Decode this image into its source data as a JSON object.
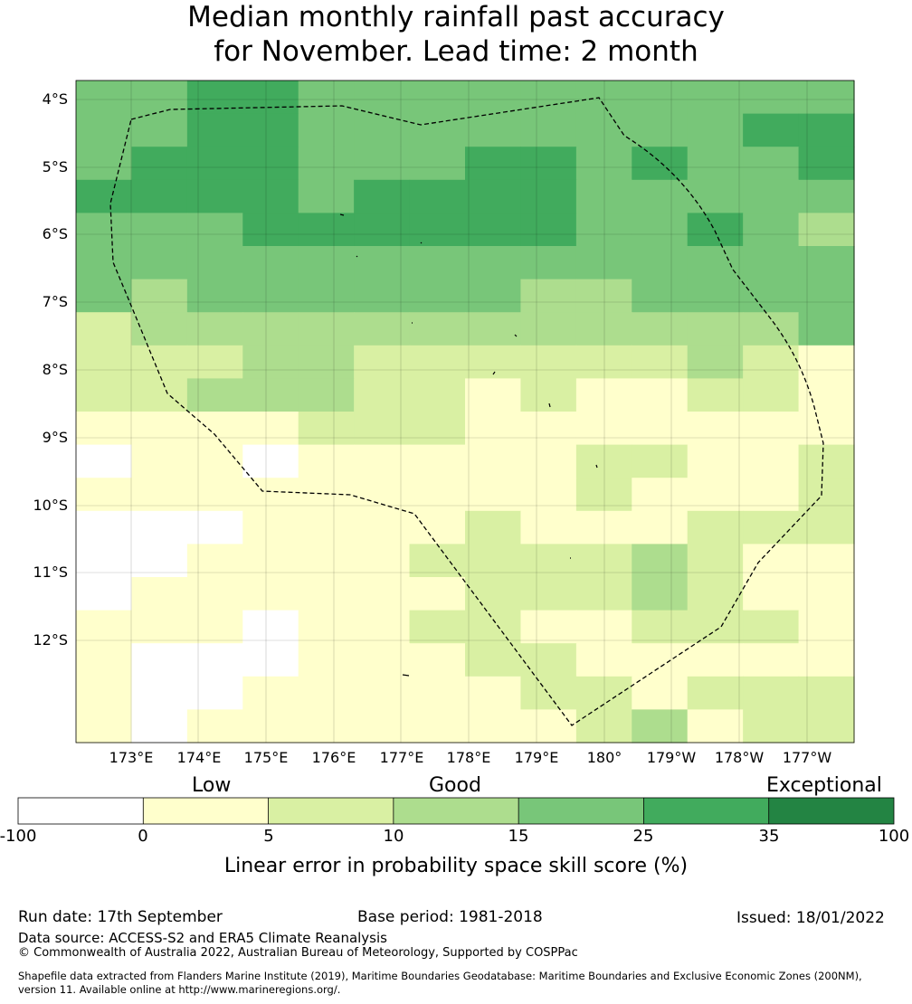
{
  "title": {
    "line1": "Median monthly rainfall past accuracy",
    "line2": "for November. Lead time: 2 month"
  },
  "map": {
    "lat_labels": [
      "4°S",
      "5°S",
      "6°S",
      "7°S",
      "8°S",
      "9°S",
      "10°S",
      "11°S",
      "12°S"
    ],
    "lon_labels": [
      "173°E",
      "174°E",
      "175°E",
      "176°E",
      "177°E",
      "178°E",
      "179°E",
      "180°",
      "179°W",
      "178°W",
      "177°W"
    ],
    "boundary_style": "dashed",
    "grid": [
      [
        4,
        4,
        5,
        5,
        4,
        4,
        4,
        4,
        4,
        4,
        4,
        4,
        4,
        4
      ],
      [
        4,
        4,
        5,
        5,
        4,
        4,
        4,
        4,
        4,
        4,
        4,
        4,
        5,
        5
      ],
      [
        4,
        5,
        5,
        5,
        4,
        4,
        4,
        5,
        5,
        4,
        5,
        4,
        4,
        5
      ],
      [
        5,
        5,
        5,
        5,
        4,
        5,
        5,
        5,
        5,
        4,
        4,
        4,
        4,
        4
      ],
      [
        4,
        4,
        4,
        5,
        5,
        5,
        5,
        5,
        5,
        4,
        4,
        5,
        4,
        3
      ],
      [
        4,
        4,
        4,
        4,
        4,
        4,
        4,
        4,
        4,
        4,
        4,
        4,
        4,
        4
      ],
      [
        4,
        3,
        4,
        4,
        4,
        4,
        4,
        4,
        3,
        3,
        4,
        4,
        4,
        4
      ],
      [
        2,
        3,
        3,
        3,
        3,
        3,
        3,
        3,
        3,
        3,
        3,
        3,
        3,
        4
      ],
      [
        2,
        2,
        2,
        3,
        3,
        2,
        2,
        2,
        2,
        2,
        2,
        3,
        2,
        1
      ],
      [
        2,
        2,
        3,
        3,
        3,
        2,
        2,
        1,
        2,
        1,
        1,
        2,
        2,
        1
      ],
      [
        1,
        1,
        1,
        1,
        2,
        2,
        2,
        1,
        1,
        1,
        1,
        1,
        1,
        1
      ],
      [
        0,
        1,
        1,
        0,
        1,
        1,
        1,
        1,
        1,
        2,
        2,
        1,
        1,
        2
      ],
      [
        1,
        1,
        1,
        1,
        1,
        1,
        1,
        1,
        1,
        2,
        1,
        1,
        1,
        2
      ],
      [
        0,
        0,
        0,
        1,
        1,
        1,
        1,
        2,
        1,
        1,
        1,
        2,
        2,
        2
      ],
      [
        0,
        0,
        1,
        1,
        1,
        1,
        2,
        2,
        2,
        2,
        3,
        2,
        1,
        1
      ],
      [
        0,
        1,
        1,
        1,
        1,
        1,
        1,
        2,
        2,
        2,
        3,
        2,
        1,
        1
      ],
      [
        1,
        1,
        1,
        0,
        1,
        1,
        2,
        2,
        1,
        1,
        2,
        2,
        2,
        1
      ],
      [
        1,
        0,
        0,
        0,
        1,
        1,
        1,
        2,
        2,
        1,
        1,
        1,
        1,
        1
      ],
      [
        1,
        0,
        0,
        1,
        1,
        1,
        1,
        1,
        2,
        2,
        1,
        2,
        2,
        2
      ],
      [
        1,
        0,
        1,
        1,
        1,
        1,
        1,
        1,
        1,
        2,
        3,
        1,
        2,
        2
      ]
    ]
  },
  "legend": {
    "categories": [
      "Low",
      "Good",
      "Exceptional"
    ],
    "ticks": [
      "-100",
      "0",
      "5",
      "10",
      "15",
      "25",
      "35",
      "100"
    ],
    "colors": [
      "#ffffff",
      "#ffffcc",
      "#d9f0a3",
      "#addd8e",
      "#78c679",
      "#41ab5d",
      "#238443"
    ],
    "label": "Linear error in probability space skill score (%)"
  },
  "footer": {
    "run_date": "Run date: 17th September",
    "base_period": "Base period: 1981-2018",
    "issued": "Issued: 18/01/2022",
    "data_source": "Data source: ACCESS-S2 and ERA5 Climate Reanalysis",
    "copyright": "© Commonwealth of Australia 2022, Australian Bureau of Meteorology, Supported by COSPPac",
    "shapefile_1": "Shapefile data extracted from Flanders Marine Institute (2019), Maritime Boundaries Geodatabase: Maritime Boundaries and Exclusive Economic Zones (200NM),",
    "shapefile_2": "version 11. Available online at http://www.marineregions.org/."
  }
}
